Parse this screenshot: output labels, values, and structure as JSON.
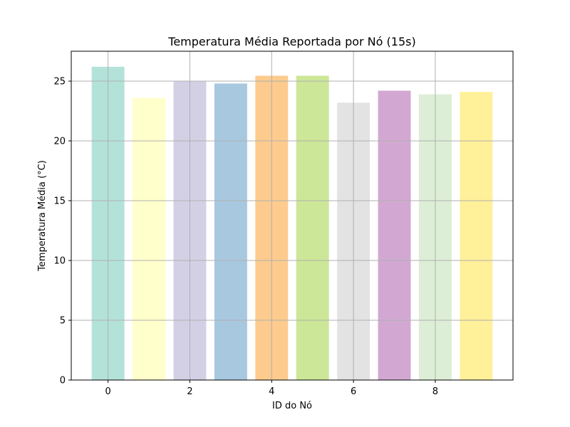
{
  "chart_data": {
    "type": "bar",
    "title": "Temperatura Média Reportada por Nó (15s)",
    "xlabel": "ID do Nó",
    "ylabel": "Temperatura Média (°C)",
    "x": [
      0,
      1,
      2,
      3,
      4,
      5,
      6,
      7,
      8,
      9
    ],
    "values": [
      26.2,
      23.6,
      25.0,
      24.8,
      25.45,
      25.45,
      23.2,
      24.2,
      23.9,
      24.1
    ],
    "colors": [
      "#b3e2d9",
      "#ffffcc",
      "#d3d0e6",
      "#a8c8e0",
      "#fdcb8e",
      "#cce797",
      "#e3e3e3",
      "#d2a8d2",
      "#ddeed6",
      "#fff09a"
    ],
    "xlim": [
      -0.9,
      9.9
    ],
    "ylim": [
      0,
      27.5
    ],
    "xticks": [
      "0",
      "2",
      "4",
      "6",
      "8"
    ],
    "xtick_values": [
      0,
      2,
      4,
      6,
      8
    ],
    "yticks": [
      "0",
      "5",
      "10",
      "15",
      "20",
      "25"
    ],
    "ytick_values": [
      0,
      5,
      10,
      15,
      20,
      25
    ],
    "grid": true,
    "legend": "none"
  }
}
